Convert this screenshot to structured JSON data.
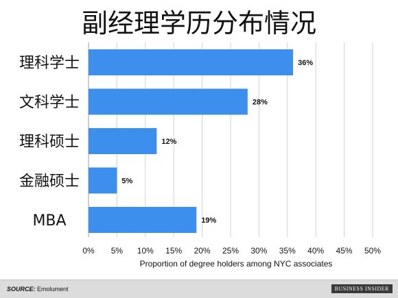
{
  "chart_data": {
    "type": "bar",
    "orientation": "horizontal",
    "title": "副经理学历分布情况",
    "categories": [
      "理科学士",
      "文科学士",
      "理科硕士",
      "金融硕士",
      "MBA"
    ],
    "values": [
      36,
      28,
      12,
      5,
      19
    ],
    "value_labels": [
      "36%",
      "28%",
      "12%",
      "5%",
      "19%"
    ],
    "xlabel": "Proportion of degree holders among NYC associates",
    "ylabel": "",
    "xlim": [
      0,
      50
    ],
    "x_ticks": [
      0,
      5,
      10,
      15,
      20,
      25,
      30,
      35,
      40,
      45,
      50
    ],
    "x_tick_labels": [
      "0%",
      "5%",
      "10%",
      "15%",
      "20%",
      "25%",
      "30%",
      "35%",
      "40%",
      "45%",
      "50%"
    ],
    "grid": true,
    "legend": "none",
    "bar_color": "#3d8fee"
  },
  "footer": {
    "source_key": "SOURCE:",
    "source_value": "Emolument",
    "brand": "BUSINESS INSIDER"
  }
}
